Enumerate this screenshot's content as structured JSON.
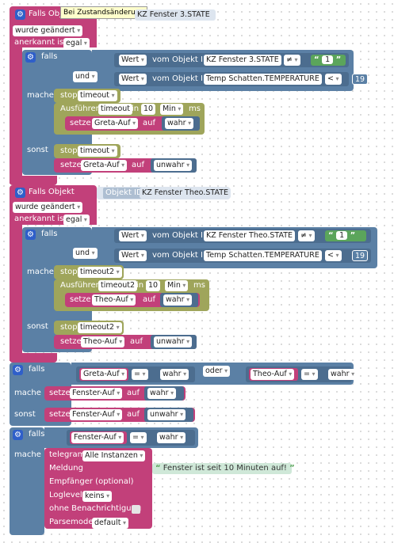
{
  "tooltip": "Bei Zustandsänderung",
  "block1": {
    "trigger": "Falls Obj",
    "object_id": "KZ Fenster 3.STATE",
    "changed": "wurde geändert",
    "ack_label": "anerkannt ist",
    "ack_value": "egal",
    "if_label": "falls",
    "cond1": {
      "wert": "Wert",
      "vom": "vom Objekt ID",
      "obj": "KZ Fenster 3.STATE",
      "op": "≠",
      "val": "1"
    },
    "and_label": "und",
    "cond2": {
      "wert": "Wert",
      "vom": "vom Objekt ID",
      "obj": "Temp Schatten.TEMPERATURE",
      "op": "<",
      "val": "19"
    },
    "do_label": "mache",
    "stop_label": "stop",
    "timer": "timeout",
    "exec_label": "Ausführen",
    "in_label": "in",
    "delay": "10",
    "unit": "Min",
    "ms_label": "ms",
    "set_label": "setze",
    "set_target": "Greta-Auf",
    "auf_label": "auf",
    "true_val": "wahr",
    "else_label": "sonst",
    "false_val": "unwahr"
  },
  "block2": {
    "trigger": "Falls Objekt",
    "object_id_label": "Objekt ID",
    "object_id": "KZ Fenster Theo.STATE",
    "changed": "wurde geändert",
    "ack_label": "anerkannt ist",
    "ack_value": "egal",
    "if_label": "falls",
    "cond1": {
      "wert": "Wert",
      "vom": "vom Objekt ID",
      "obj": "KZ Fenster Theo.STATE",
      "op": "≠",
      "val": "1"
    },
    "and_label": "und",
    "cond2": {
      "wert": "Wert",
      "vom": "vom Objekt ID",
      "obj": "Temp Schatten.TEMPERATURE",
      "op": "<",
      "val": "19"
    },
    "do_label": "mache",
    "stop_label": "stop",
    "timer": "timeout2",
    "exec_label": "Ausführen",
    "in_label": "in",
    "delay": "10",
    "unit": "Min",
    "ms_label": "ms",
    "set_label": "setze",
    "set_target": "Theo-Auf",
    "auf_label": "auf",
    "true_val": "wahr",
    "else_label": "sonst",
    "false_val": "unwahr"
  },
  "block3": {
    "if_label": "falls",
    "left_var": "Greta-Auf",
    "eq": "=",
    "left_val": "wahr",
    "or_label": "oder",
    "right_var": "Theo-Auf",
    "right_val": "wahr",
    "do_label": "mache",
    "set_label": "setze",
    "target": "Fenster-Auf",
    "auf_label": "auf",
    "true_val": "wahr",
    "else_label": "sonst",
    "false_val": "unwahr"
  },
  "block4": {
    "if_label": "falls",
    "var": "Fenster-Auf",
    "eq": "=",
    "val": "wahr",
    "do_label": "mache",
    "telegram": "telegram",
    "instances": "Alle Instanzen",
    "message_label": "Meldung",
    "message": "Fenster ist seit 10 Minuten auf!",
    "recipient_label": "Empfänger (optional)",
    "loglevel_label": "Loglevel",
    "loglevel": "keins",
    "silent_label": "ohne Benachrichtigung",
    "parsemode_label": "Parsemode",
    "parsemode": "default"
  },
  "colors": {
    "event": "#c2407a",
    "logic": "#5b80a5",
    "timer": "#9fa55b",
    "text": "#5ba55b"
  }
}
